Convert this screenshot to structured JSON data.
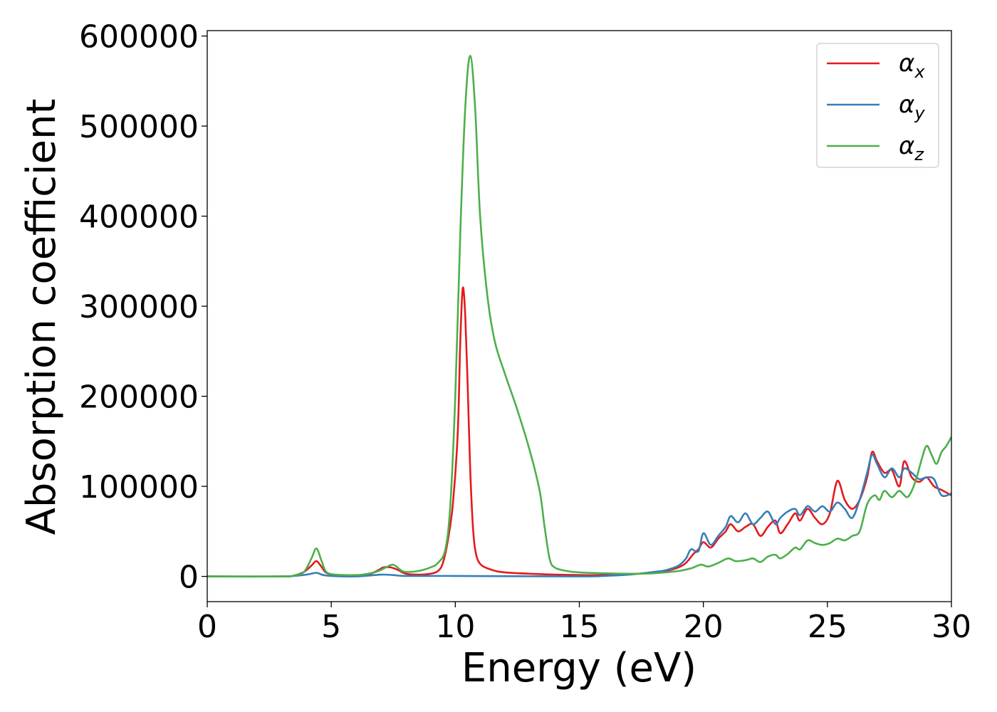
{
  "chart_data": {
    "type": "line",
    "title": "",
    "xlabel": "Energy (eV)",
    "ylabel": "Absorption coefficient",
    "xlim": [
      0,
      30
    ],
    "ylim": [
      -28000,
      606000
    ],
    "xticks": [
      0,
      5,
      10,
      15,
      20,
      25,
      30
    ],
    "yticks": [
      0,
      100000,
      200000,
      300000,
      400000,
      500000,
      600000
    ],
    "grid": false,
    "legend_position": "top-right",
    "series": [
      {
        "name": "α_x",
        "label_main": "α",
        "label_sub": "x",
        "color": "#e41a1c",
        "points": [
          [
            0,
            0
          ],
          [
            3,
            0
          ],
          [
            3.5,
            1000
          ],
          [
            3.9,
            5000
          ],
          [
            4.2,
            12000
          ],
          [
            4.4,
            17000
          ],
          [
            4.6,
            11000
          ],
          [
            4.8,
            4000
          ],
          [
            5.2,
            1500
          ],
          [
            6,
            1000
          ],
          [
            6.5,
            2000
          ],
          [
            6.9,
            7000
          ],
          [
            7.1,
            10000
          ],
          [
            7.4,
            10000
          ],
          [
            7.7,
            7000
          ],
          [
            8,
            3000
          ],
          [
            8.5,
            2000
          ],
          [
            9,
            3000
          ],
          [
            9.3,
            6000
          ],
          [
            9.5,
            15000
          ],
          [
            9.7,
            40000
          ],
          [
            9.9,
            80000
          ],
          [
            10.1,
            160000
          ],
          [
            10.2,
            260000
          ],
          [
            10.3,
            320000
          ],
          [
            10.4,
            290000
          ],
          [
            10.5,
            210000
          ],
          [
            10.6,
            120000
          ],
          [
            10.7,
            60000
          ],
          [
            10.8,
            30000
          ],
          [
            11,
            14000
          ],
          [
            11.5,
            7000
          ],
          [
            12,
            4500
          ],
          [
            13,
            3000
          ],
          [
            14,
            2000
          ],
          [
            15,
            1500
          ],
          [
            16,
            1500
          ],
          [
            17,
            2500
          ],
          [
            18,
            4000
          ],
          [
            18.5,
            6000
          ],
          [
            19,
            10000
          ],
          [
            19.3,
            15000
          ],
          [
            19.6,
            25000
          ],
          [
            19.8,
            30000
          ],
          [
            20,
            38000
          ],
          [
            20.3,
            32000
          ],
          [
            20.6,
            42000
          ],
          [
            20.9,
            50000
          ],
          [
            21.1,
            58000
          ],
          [
            21.4,
            50000
          ],
          [
            21.7,
            55000
          ],
          [
            22,
            58000
          ],
          [
            22.3,
            45000
          ],
          [
            22.6,
            55000
          ],
          [
            22.9,
            62000
          ],
          [
            23.1,
            48000
          ],
          [
            23.4,
            58000
          ],
          [
            23.7,
            70000
          ],
          [
            23.9,
            62000
          ],
          [
            24.2,
            75000
          ],
          [
            24.5,
            65000
          ],
          [
            24.8,
            58000
          ],
          [
            25.1,
            70000
          ],
          [
            25.4,
            106000
          ],
          [
            25.7,
            85000
          ],
          [
            26,
            75000
          ],
          [
            26.3,
            85000
          ],
          [
            26.6,
            110000
          ],
          [
            26.8,
            138000
          ],
          [
            27,
            128000
          ],
          [
            27.3,
            115000
          ],
          [
            27.6,
            118000
          ],
          [
            27.9,
            100000
          ],
          [
            28.1,
            128000
          ],
          [
            28.4,
            110000
          ],
          [
            28.7,
            105000
          ],
          [
            29,
            110000
          ],
          [
            29.3,
            100000
          ],
          [
            29.6,
            96000
          ],
          [
            30,
            90000
          ]
        ]
      },
      {
        "name": "α_y",
        "label_main": "α",
        "label_sub": "y",
        "color": "#377eb8",
        "points": [
          [
            0,
            0
          ],
          [
            3,
            0
          ],
          [
            4,
            2000
          ],
          [
            4.4,
            4000
          ],
          [
            4.8,
            1000
          ],
          [
            6,
            0
          ],
          [
            7,
            2000
          ],
          [
            7.5,
            1500
          ],
          [
            8,
            500
          ],
          [
            10,
            500
          ],
          [
            15,
            0
          ],
          [
            16,
            500
          ],
          [
            17,
            2000
          ],
          [
            18,
            5000
          ],
          [
            18.5,
            7000
          ],
          [
            19,
            12000
          ],
          [
            19.3,
            20000
          ],
          [
            19.5,
            30000
          ],
          [
            19.8,
            28000
          ],
          [
            20,
            48000
          ],
          [
            20.3,
            35000
          ],
          [
            20.6,
            45000
          ],
          [
            20.9,
            55000
          ],
          [
            21.1,
            67000
          ],
          [
            21.4,
            60000
          ],
          [
            21.7,
            70000
          ],
          [
            22,
            58000
          ],
          [
            22.3,
            65000
          ],
          [
            22.6,
            72000
          ],
          [
            22.9,
            58000
          ],
          [
            23.1,
            65000
          ],
          [
            23.4,
            72000
          ],
          [
            23.7,
            75000
          ],
          [
            23.9,
            68000
          ],
          [
            24.2,
            78000
          ],
          [
            24.5,
            72000
          ],
          [
            24.8,
            78000
          ],
          [
            25.1,
            72000
          ],
          [
            25.4,
            82000
          ],
          [
            25.7,
            75000
          ],
          [
            26,
            65000
          ],
          [
            26.3,
            85000
          ],
          [
            26.6,
            115000
          ],
          [
            26.8,
            135000
          ],
          [
            27,
            125000
          ],
          [
            27.3,
            110000
          ],
          [
            27.6,
            120000
          ],
          [
            27.9,
            110000
          ],
          [
            28.1,
            120000
          ],
          [
            28.4,
            115000
          ],
          [
            28.7,
            108000
          ],
          [
            29,
            110000
          ],
          [
            29.3,
            108000
          ],
          [
            29.6,
            90000
          ],
          [
            30,
            92000
          ]
        ]
      },
      {
        "name": "α_z",
        "label_main": "α",
        "label_sub": "z",
        "color": "#4daf4a",
        "points": [
          [
            0,
            0
          ],
          [
            3,
            0
          ],
          [
            3.5,
            1000
          ],
          [
            3.9,
            5000
          ],
          [
            4.2,
            20000
          ],
          [
            4.4,
            31000
          ],
          [
            4.6,
            18000
          ],
          [
            4.8,
            5000
          ],
          [
            5.2,
            2000
          ],
          [
            6,
            1500
          ],
          [
            6.5,
            3000
          ],
          [
            6.9,
            6000
          ],
          [
            7.2,
            10000
          ],
          [
            7.5,
            13000
          ],
          [
            7.8,
            7000
          ],
          [
            8,
            5000
          ],
          [
            8.5,
            6000
          ],
          [
            9,
            10000
          ],
          [
            9.3,
            15000
          ],
          [
            9.6,
            30000
          ],
          [
            9.8,
            80000
          ],
          [
            10,
            200000
          ],
          [
            10.2,
            380000
          ],
          [
            10.4,
            520000
          ],
          [
            10.6,
            578000
          ],
          [
            10.8,
            520000
          ],
          [
            11,
            400000
          ],
          [
            11.3,
            310000
          ],
          [
            11.6,
            260000
          ],
          [
            12,
            225000
          ],
          [
            12.5,
            185000
          ],
          [
            13,
            140000
          ],
          [
            13.4,
            95000
          ],
          [
            13.6,
            55000
          ],
          [
            13.8,
            20000
          ],
          [
            14,
            10000
          ],
          [
            14.5,
            6000
          ],
          [
            15,
            4500
          ],
          [
            16,
            3500
          ],
          [
            17,
            3000
          ],
          [
            18,
            3500
          ],
          [
            19,
            6000
          ],
          [
            19.5,
            9000
          ],
          [
            19.9,
            13000
          ],
          [
            20.2,
            11000
          ],
          [
            20.6,
            15000
          ],
          [
            21,
            20000
          ],
          [
            21.3,
            17000
          ],
          [
            21.7,
            18000
          ],
          [
            22,
            20000
          ],
          [
            22.3,
            16000
          ],
          [
            22.6,
            22000
          ],
          [
            22.9,
            24000
          ],
          [
            23.1,
            20000
          ],
          [
            23.4,
            25000
          ],
          [
            23.7,
            32000
          ],
          [
            23.9,
            30000
          ],
          [
            24.2,
            40000
          ],
          [
            24.5,
            37000
          ],
          [
            24.8,
            35000
          ],
          [
            25.1,
            37000
          ],
          [
            25.4,
            42000
          ],
          [
            25.7,
            40000
          ],
          [
            26,
            45000
          ],
          [
            26.3,
            50000
          ],
          [
            26.6,
            80000
          ],
          [
            26.9,
            90000
          ],
          [
            27.1,
            85000
          ],
          [
            27.3,
            95000
          ],
          [
            27.6,
            88000
          ],
          [
            27.9,
            95000
          ],
          [
            28.2,
            88000
          ],
          [
            28.4,
            95000
          ],
          [
            28.6,
            110000
          ],
          [
            28.8,
            130000
          ],
          [
            29,
            145000
          ],
          [
            29.2,
            135000
          ],
          [
            29.4,
            125000
          ],
          [
            29.6,
            138000
          ],
          [
            29.8,
            145000
          ],
          [
            30,
            155000
          ]
        ]
      }
    ]
  }
}
